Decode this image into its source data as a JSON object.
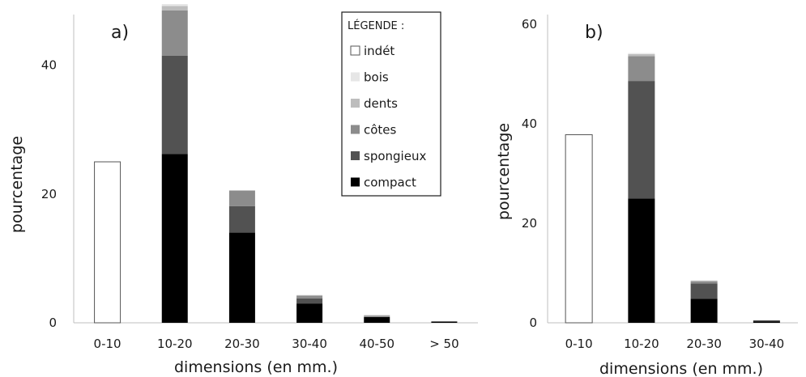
{
  "legend": {
    "title": "LÉGENDE :",
    "items": [
      {
        "key": "indet",
        "label": "indét",
        "color": "#ffffff",
        "stroke": "#555555"
      },
      {
        "key": "bois",
        "label": "bois",
        "color": "#e6e6e6",
        "stroke": "#e6e6e6"
      },
      {
        "key": "dents",
        "label": "dents",
        "color": "#bdbdbd",
        "stroke": "#bdbdbd"
      },
      {
        "key": "cotes",
        "label": "côtes",
        "color": "#8c8c8c",
        "stroke": "#8c8c8c"
      },
      {
        "key": "spongieux",
        "label": "spongieux",
        "color": "#525252",
        "stroke": "#525252"
      },
      {
        "key": "compact",
        "label": "compact",
        "color": "#000000",
        "stroke": "#000000"
      }
    ]
  },
  "chart_data": [
    {
      "type": "bar",
      "stacked": true,
      "panel_label": "a)",
      "xlabel": "dimensions (en mm.)",
      "ylabel": "pourcentage",
      "ylim": [
        0,
        49
      ],
      "yticks": [
        0,
        20,
        40
      ],
      "categories": [
        "0-10",
        "10-20",
        "20-30",
        "30-40",
        "40-50",
        "> 50"
      ],
      "series": [
        {
          "key": "compact",
          "values": [
            0,
            26.2,
            14.0,
            3.0,
            0.9,
            0.2
          ]
        },
        {
          "key": "spongieux",
          "values": [
            0,
            15.3,
            4.1,
            0.8,
            0,
            0
          ]
        },
        {
          "key": "cotes",
          "values": [
            0,
            7.0,
            2.4,
            0.4,
            0.2,
            0
          ]
        },
        {
          "key": "dents",
          "values": [
            0,
            0.7,
            0.1,
            0.1,
            0.1,
            0
          ]
        },
        {
          "key": "bois",
          "values": [
            0,
            0.3,
            0,
            0,
            0,
            0
          ]
        },
        {
          "key": "indet",
          "values": [
            25.0,
            0,
            0,
            0,
            0,
            0
          ]
        }
      ]
    },
    {
      "type": "bar",
      "stacked": true,
      "panel_label": "b)",
      "xlabel": "dimensions (en mm.)",
      "ylabel": "pourcentage",
      "ylim": [
        0,
        60
      ],
      "yticks": [
        0,
        20,
        40,
        60
      ],
      "categories": [
        "0-10",
        "10-20",
        "20-30",
        "30-40"
      ],
      "series": [
        {
          "key": "compact",
          "values": [
            0,
            25.0,
            4.8,
            0.3
          ]
        },
        {
          "key": "spongieux",
          "values": [
            0,
            23.6,
            3.1,
            0.2
          ]
        },
        {
          "key": "cotes",
          "values": [
            0,
            5.0,
            0.4,
            0
          ]
        },
        {
          "key": "dents",
          "values": [
            0,
            0.4,
            0.2,
            0
          ]
        },
        {
          "key": "bois",
          "values": [
            0,
            0.2,
            0,
            0
          ]
        },
        {
          "key": "indet",
          "values": [
            37.8,
            0,
            0,
            0
          ]
        }
      ]
    }
  ]
}
